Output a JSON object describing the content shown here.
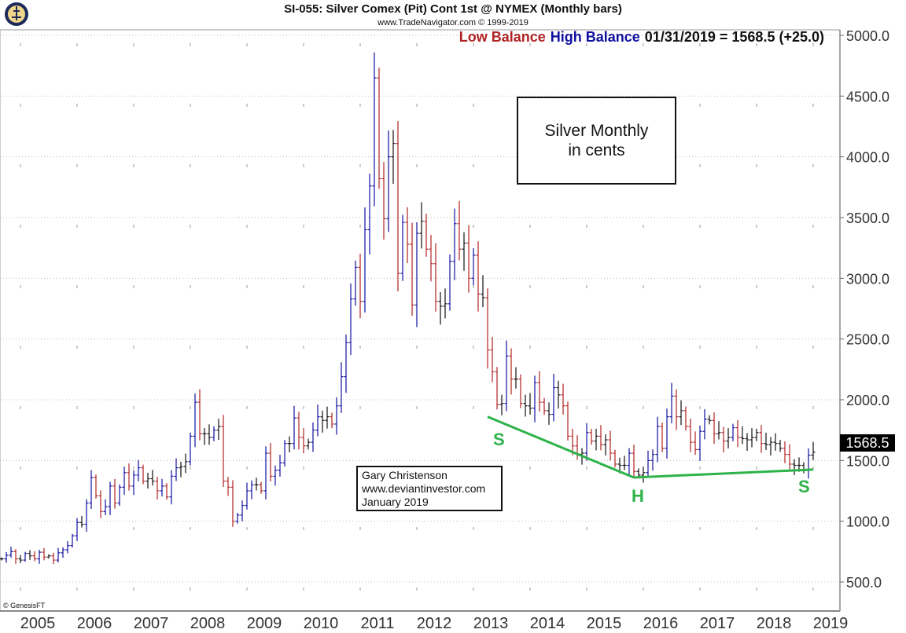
{
  "header": {
    "title": "SI-055:  Silver Comex (Pit) Cont 1st @ NYMEX  (Monthly bars)",
    "subtitle": "www.TradeNavigator.com © 1999-2019",
    "legend_low": "Low Balance",
    "legend_high": "High Balance",
    "quote": "01/31/2019 = 1568.5 (+25.0)"
  },
  "colors": {
    "low": "#b22222",
    "high": "#1010a0",
    "neutral": "#111111",
    "pattern": "#2db34a"
  },
  "annotations": {
    "box_line1": "Silver Monthly",
    "box_line2": "in cents",
    "author": "Gary Christenson",
    "site": "www.deviantinvestor.com",
    "date": "January 2019",
    "s1": "S",
    "h": "H",
    "s2": "S",
    "price_tag": "1568.5",
    "copyright": "© GenesisFT"
  },
  "chart_data": {
    "type": "ohlc",
    "title": "SI-055: Silver Comex (Pit) Cont 1st @ NYMEX (Monthly bars)",
    "ylabel": "cents",
    "ylim": [
      500,
      5000
    ],
    "yticks": [
      "5000.0",
      "4500.0",
      "4000.0",
      "3500.0",
      "3000.0",
      "2500.0",
      "2000.0",
      "1500.0",
      "1000.0",
      "500.0"
    ],
    "ytick_values": [
      5000,
      4500,
      4000,
      3500,
      3000,
      2500,
      2000,
      1500,
      1000,
      500
    ],
    "xticks": [
      "2005",
      "2006",
      "2007",
      "2008",
      "2009",
      "2010",
      "2011",
      "2012",
      "2013",
      "2014",
      "2015",
      "2016",
      "2017",
      "2018",
      "2019"
    ],
    "start": "2004-09",
    "closes": [
      690,
      720,
      750,
      690,
      680,
      735,
      715,
      690,
      745,
      705,
      715,
      680,
      740,
      765,
      800,
      880,
      990,
      975,
      1150,
      1360,
      1210,
      1080,
      1120,
      1290,
      1150,
      1280,
      1400,
      1290,
      1380,
      1440,
      1330,
      1350,
      1330,
      1250,
      1290,
      1200,
      1370,
      1440,
      1450,
      1490,
      1700,
      1980,
      1720,
      1720,
      1690,
      1750,
      1780,
      1330,
      1280,
      1000,
      1050,
      1130,
      1250,
      1300,
      1300,
      1250,
      1560,
      1370,
      1420,
      1480,
      1640,
      1640,
      1850,
      1690,
      1620,
      1650,
      1750,
      1860,
      1830,
      1860,
      1800,
      1950,
      2190,
      2470,
      2830,
      3090,
      2810,
      3400,
      3760,
      4650,
      3820,
      3490,
      4000,
      4110,
      3040,
      3460,
      3280,
      2780,
      3370,
      3470,
      3240,
      3120,
      2810,
      2770,
      2790,
      3140,
      3450,
      3240,
      3290,
      3000,
      3190,
      2870,
      2840,
      2410,
      2230,
      1960,
      1970,
      2360,
      2170,
      2170,
      1970,
      1950,
      1930,
      2140,
      1980,
      1910,
      1880,
      2100,
      2040,
      1950,
      1700,
      1620,
      1550,
      1560,
      1730,
      1660,
      1700,
      1630,
      1670,
      1560,
      1470,
      1460,
      1460,
      1560,
      1410,
      1380,
      1400,
      1500,
      1550,
      1780,
      1600,
      1860,
      2030,
      1860,
      1910,
      1780,
      1650,
      1590,
      1740,
      1840,
      1830,
      1720,
      1730,
      1660,
      1690,
      1770,
      1690,
      1680,
      1670,
      1690,
      1730,
      1640,
      1630,
      1650,
      1640,
      1600,
      1550,
      1470,
      1460,
      1460,
      1420,
      1544,
      1568.5
    ],
    "trendlines": [
      {
        "label": "S-H",
        "from": [
          "2013-04",
          1860
        ],
        "to": [
          "2015-11",
          1360
        ]
      },
      {
        "label": "H-S",
        "from": [
          "2015-11",
          1360
        ],
        "to": [
          "2019-01",
          1425
        ]
      }
    ],
    "last": {
      "date": "01/31/2019",
      "value": 1568.5,
      "change": 25.0
    }
  }
}
